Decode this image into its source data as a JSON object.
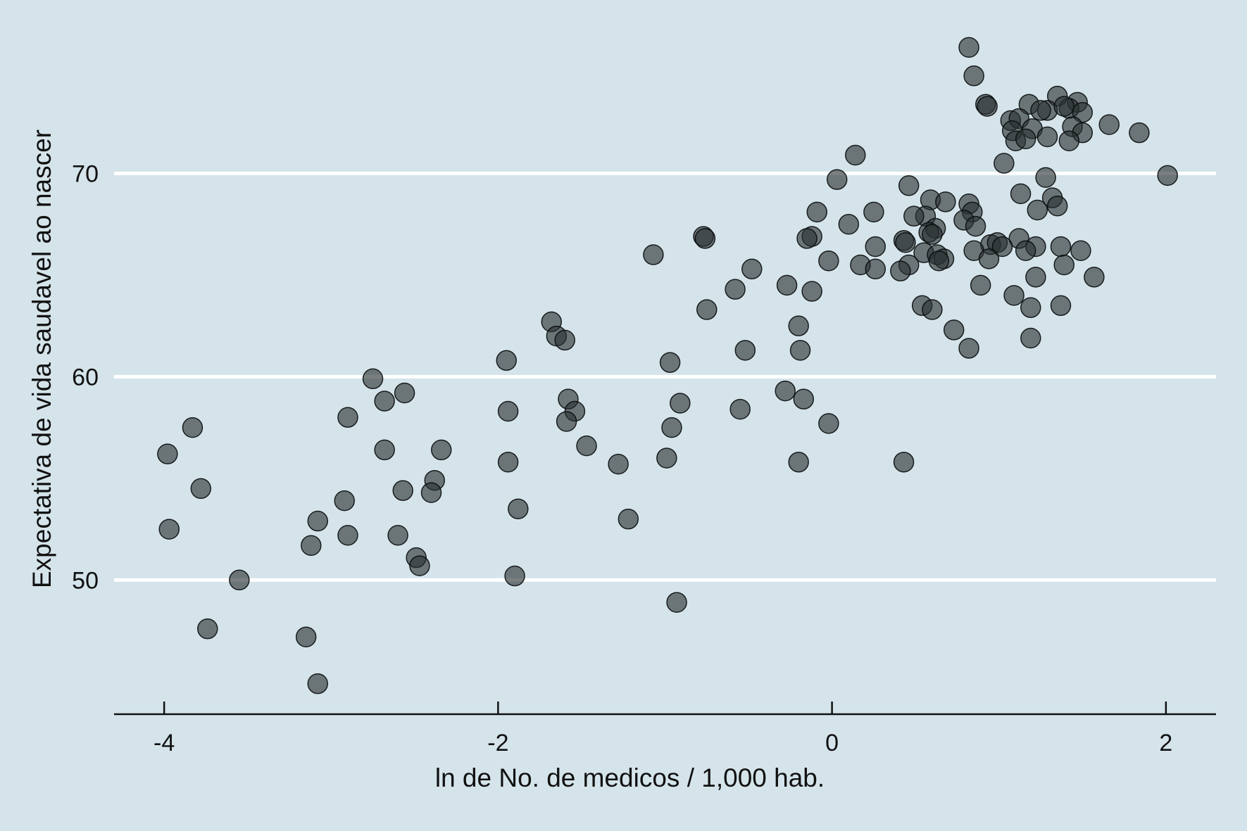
{
  "chart_data": {
    "type": "scatter",
    "xlabel": "ln de No. de medicos / 1,000 hab.",
    "ylabel": "Expectativa de vida saudavel ao nascer",
    "xlim": [
      -4.3,
      2.3
    ],
    "ylim": [
      43.4,
      76.8
    ],
    "xticks": [
      -4,
      -2,
      0,
      2
    ],
    "xtick_labels": [
      "-4",
      "-2",
      "0",
      "2"
    ],
    "yticks": [
      50,
      60,
      70
    ],
    "ytick_labels": [
      "50",
      "60",
      "70"
    ],
    "grid": "horizontal",
    "marker_color": "#2a3032",
    "background_color": "#d5e4eb",
    "points": [
      [
        0.82,
        76.2
      ],
      [
        0.85,
        74.8
      ],
      [
        0.92,
        73.4
      ],
      [
        0.93,
        73.3
      ],
      [
        1.35,
        73.8
      ],
      [
        1.47,
        73.5
      ],
      [
        1.18,
        73.4
      ],
      [
        1.29,
        73.1
      ],
      [
        1.25,
        73.1
      ],
      [
        1.42,
        73.2
      ],
      [
        1.39,
        73.3
      ],
      [
        1.5,
        73.0
      ],
      [
        1.07,
        72.6
      ],
      [
        1.12,
        72.7
      ],
      [
        1.2,
        72.2
      ],
      [
        1.08,
        72.1
      ],
      [
        1.44,
        72.3
      ],
      [
        1.5,
        72.0
      ],
      [
        1.66,
        72.4
      ],
      [
        1.84,
        72.0
      ],
      [
        1.1,
        71.6
      ],
      [
        1.16,
        71.7
      ],
      [
        1.29,
        71.8
      ],
      [
        1.42,
        71.6
      ],
      [
        0.14,
        70.9
      ],
      [
        1.03,
        70.5
      ],
      [
        2.01,
        69.9
      ],
      [
        0.03,
        69.7
      ],
      [
        1.28,
        69.8
      ],
      [
        0.46,
        69.4
      ],
      [
        1.13,
        69.0
      ],
      [
        0.59,
        68.7
      ],
      [
        0.68,
        68.6
      ],
      [
        1.32,
        68.8
      ],
      [
        0.82,
        68.5
      ],
      [
        1.35,
        68.4
      ],
      [
        1.23,
        68.2
      ],
      [
        -0.09,
        68.1
      ],
      [
        0.25,
        68.1
      ],
      [
        0.84,
        68.1
      ],
      [
        0.56,
        67.9
      ],
      [
        0.49,
        67.9
      ],
      [
        0.79,
        67.7
      ],
      [
        0.1,
        67.5
      ],
      [
        0.86,
        67.4
      ],
      [
        0.62,
        67.3
      ],
      [
        0.58,
        67.1
      ],
      [
        0.6,
        67.0
      ],
      [
        -0.77,
        66.9
      ],
      [
        -0.76,
        66.8
      ],
      [
        -0.12,
        66.9
      ],
      [
        -0.15,
        66.8
      ],
      [
        0.43,
        66.7
      ],
      [
        0.44,
        66.6
      ],
      [
        1.12,
        66.8
      ],
      [
        0.95,
        66.5
      ],
      [
        0.99,
        66.6
      ],
      [
        1.22,
        66.4
      ],
      [
        1.37,
        66.4
      ],
      [
        0.26,
        66.4
      ],
      [
        1.02,
        66.4
      ],
      [
        0.85,
        66.2
      ],
      [
        1.16,
        66.2
      ],
      [
        1.49,
        66.2
      ],
      [
        0.55,
        66.1
      ],
      [
        0.63,
        66.0
      ],
      [
        -1.07,
        66.0
      ],
      [
        0.67,
        65.8
      ],
      [
        0.64,
        65.7
      ],
      [
        0.94,
        65.8
      ],
      [
        -0.02,
        65.7
      ],
      [
        0.46,
        65.5
      ],
      [
        0.17,
        65.5
      ],
      [
        0.26,
        65.3
      ],
      [
        0.41,
        65.2
      ],
      [
        1.39,
        65.5
      ],
      [
        -0.48,
        65.3
      ],
      [
        1.22,
        64.9
      ],
      [
        1.57,
        64.9
      ],
      [
        -0.27,
        64.5
      ],
      [
        0.89,
        64.5
      ],
      [
        -0.58,
        64.3
      ],
      [
        -0.12,
        64.2
      ],
      [
        1.09,
        64.0
      ],
      [
        0.54,
        63.5
      ],
      [
        0.6,
        63.3
      ],
      [
        1.19,
        63.4
      ],
      [
        1.37,
        63.5
      ],
      [
        -0.75,
        63.3
      ],
      [
        -1.68,
        62.7
      ],
      [
        -0.2,
        62.5
      ],
      [
        0.73,
        62.3
      ],
      [
        -1.65,
        62.0
      ],
      [
        -1.6,
        61.8
      ],
      [
        1.19,
        61.9
      ],
      [
        -0.52,
        61.3
      ],
      [
        -0.19,
        61.3
      ],
      [
        0.82,
        61.4
      ],
      [
        -1.95,
        60.8
      ],
      [
        -0.97,
        60.7
      ],
      [
        -2.75,
        59.9
      ],
      [
        -0.28,
        59.3
      ],
      [
        -2.56,
        59.2
      ],
      [
        -1.58,
        58.9
      ],
      [
        -0.17,
        58.9
      ],
      [
        -2.68,
        58.8
      ],
      [
        -0.91,
        58.7
      ],
      [
        -0.55,
        58.4
      ],
      [
        -1.94,
        58.3
      ],
      [
        -1.54,
        58.3
      ],
      [
        -2.9,
        58.0
      ],
      [
        -1.59,
        57.8
      ],
      [
        -0.02,
        57.7
      ],
      [
        -3.83,
        57.5
      ],
      [
        -0.96,
        57.5
      ],
      [
        -1.47,
        56.6
      ],
      [
        -2.34,
        56.4
      ],
      [
        -2.68,
        56.4
      ],
      [
        -3.98,
        56.2
      ],
      [
        -0.99,
        56.0
      ],
      [
        -1.94,
        55.8
      ],
      [
        -0.2,
        55.8
      ],
      [
        -1.28,
        55.7
      ],
      [
        0.43,
        55.8
      ],
      [
        -2.38,
        54.9
      ],
      [
        -3.78,
        54.5
      ],
      [
        -2.57,
        54.4
      ],
      [
        -2.4,
        54.3
      ],
      [
        -2.92,
        53.9
      ],
      [
        -1.88,
        53.5
      ],
      [
        -1.22,
        53.0
      ],
      [
        -3.08,
        52.9
      ],
      [
        -3.97,
        52.5
      ],
      [
        -2.6,
        52.2
      ],
      [
        -2.9,
        52.2
      ],
      [
        -3.12,
        51.7
      ],
      [
        -2.49,
        51.1
      ],
      [
        -2.47,
        50.7
      ],
      [
        -1.9,
        50.2
      ],
      [
        -3.55,
        50.0
      ],
      [
        -0.93,
        48.9
      ],
      [
        -3.74,
        47.6
      ],
      [
        -3.15,
        47.2
      ],
      [
        -3.08,
        44.9
      ]
    ]
  }
}
